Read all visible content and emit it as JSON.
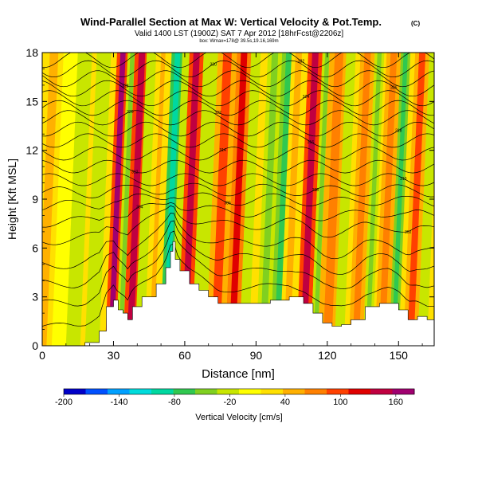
{
  "chart_data": {
    "type": "heatmap",
    "title": "Wind-Parallel Section at Max W: Vertical Velocity & Pot.Temp.",
    "title_mark": "(C)",
    "subtitle": "Valid 1400 LST (1900Z) SAT 7 Apr 2012 [18hrFcst@2206z]",
    "subsubtitle": "box: Wmax=178@ 39.5s,19.16,169m",
    "xlabel": "Distance [nm]",
    "ylabel": "Height [Kft MSL]",
    "xlim": [
      0,
      165
    ],
    "ylim": [
      0,
      18
    ],
    "xticks": [
      0,
      30,
      60,
      90,
      120,
      150
    ],
    "yticks": [
      0,
      3,
      6,
      9,
      12,
      15,
      18
    ],
    "colorbar": {
      "label": "Vertical Velocity [cm/s]",
      "range": [
        -200,
        180
      ],
      "ticks": [
        -200,
        -140,
        -80,
        -20,
        40,
        100,
        160
      ],
      "colors": [
        "#0000c8",
        "#0050ff",
        "#00a0ff",
        "#00dcdc",
        "#00d8a0",
        "#30c850",
        "#80d020",
        "#c8e600",
        "#ffff00",
        "#ffe000",
        "#ffb000",
        "#ff8000",
        "#ff4000",
        "#e00000",
        "#c00040",
        "#a00070"
      ]
    },
    "bands": [
      {
        "x": 0,
        "w": 4,
        "v": 40
      },
      {
        "x": 7,
        "w": 3,
        "v": -10
      },
      {
        "x": 13,
        "w": 3,
        "v": -20
      },
      {
        "x": 21,
        "w": 3,
        "v": -30
      },
      {
        "x": 29,
        "w": 2.5,
        "v": 170
      },
      {
        "x": 33,
        "w": 2,
        "v": -40
      },
      {
        "x": 37,
        "w": 3,
        "v": 150
      },
      {
        "x": 41,
        "w": 2,
        "v": -30
      },
      {
        "x": 46,
        "w": 2,
        "v": 40
      },
      {
        "x": 52,
        "w": 2.5,
        "v": -100
      },
      {
        "x": 56,
        "w": 2,
        "v": -30
      },
      {
        "x": 60,
        "w": 3,
        "v": 150
      },
      {
        "x": 66,
        "w": 3,
        "v": -20
      },
      {
        "x": 73,
        "w": 4,
        "v": 90
      },
      {
        "x": 80,
        "w": 3,
        "v": 120
      },
      {
        "x": 85,
        "w": 2,
        "v": -30
      },
      {
        "x": 93,
        "w": 3,
        "v": -40
      },
      {
        "x": 99,
        "w": 3,
        "v": -60
      },
      {
        "x": 103,
        "w": 3,
        "v": 60
      },
      {
        "x": 110,
        "w": 3,
        "v": 150
      },
      {
        "x": 115,
        "w": 2,
        "v": -50
      },
      {
        "x": 120,
        "w": 4,
        "v": 80
      },
      {
        "x": 125,
        "w": 2,
        "v": -30
      },
      {
        "x": 132,
        "w": 3,
        "v": 70
      },
      {
        "x": 137,
        "w": 2,
        "v": -40
      },
      {
        "x": 143,
        "w": 3,
        "v": 80
      },
      {
        "x": 148,
        "w": 2,
        "v": -60
      },
      {
        "x": 155,
        "w": 3,
        "v": 90
      },
      {
        "x": 160,
        "w": 2,
        "v": -20
      }
    ],
    "terrain": [
      [
        0,
        0
      ],
      [
        14,
        0
      ],
      [
        18,
        0.2
      ],
      [
        24,
        0.9
      ],
      [
        27,
        2.4
      ],
      [
        30,
        2.8
      ],
      [
        32,
        2.2
      ],
      [
        34,
        2.0
      ],
      [
        36,
        1.6
      ],
      [
        38,
        2.4
      ],
      [
        42,
        3.0
      ],
      [
        48,
        3.8
      ],
      [
        52,
        4.8
      ],
      [
        54,
        5.8
      ],
      [
        55,
        6.4
      ],
      [
        56,
        5.3
      ],
      [
        58,
        4.6
      ],
      [
        62,
        3.8
      ],
      [
        66,
        3.4
      ],
      [
        70,
        3.0
      ],
      [
        74,
        2.6
      ],
      [
        80,
        2.6
      ],
      [
        88,
        2.6
      ],
      [
        96,
        2.8
      ],
      [
        104,
        3.0
      ],
      [
        110,
        2.6
      ],
      [
        114,
        2.0
      ],
      [
        118,
        1.4
      ],
      [
        122,
        1.2
      ],
      [
        126,
        1.3
      ],
      [
        130,
        1.6
      ],
      [
        136,
        2.4
      ],
      [
        142,
        2.6
      ],
      [
        146,
        2.6
      ],
      [
        150,
        2.2
      ],
      [
        154,
        1.6
      ],
      [
        158,
        1.8
      ],
      [
        162,
        1.6
      ],
      [
        165,
        1.6
      ]
    ],
    "theta_levels": [
      {
        "h": 1.2,
        "label": ""
      },
      {
        "h": 2.6,
        "label": ""
      },
      {
        "h": 3.8,
        "label": ""
      },
      {
        "h": 5.0,
        "label": ""
      },
      {
        "h": 6.5,
        "label": "302"
      },
      {
        "h": 7.6,
        "label": "304"
      },
      {
        "h": 8.6,
        "label": "306"
      },
      {
        "h": 9.4,
        "label": "308"
      },
      {
        "h": 10.2,
        "label": "310"
      },
      {
        "h": 11.0,
        "label": "312"
      },
      {
        "h": 11.8,
        "label": "314"
      },
      {
        "h": 12.6,
        "label": "316"
      },
      {
        "h": 13.3,
        "label": "318"
      },
      {
        "h": 14.0,
        "label": "320"
      },
      {
        "h": 14.6,
        "label": "322"
      },
      {
        "h": 15.2,
        "label": "324"
      },
      {
        "h": 15.8,
        "label": "326"
      },
      {
        "h": 16.4,
        "label": "328"
      },
      {
        "h": 17.0,
        "label": "330"
      },
      {
        "h": 17.6,
        "label": "332"
      }
    ]
  }
}
